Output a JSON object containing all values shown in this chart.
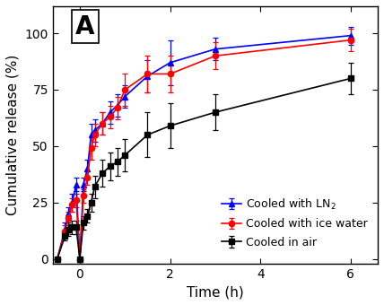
{
  "ln2_x": [
    -0.5,
    -0.33,
    -0.25,
    -0.17,
    -0.08,
    0.0,
    0.08,
    0.17,
    0.25,
    0.33,
    0.5,
    0.67,
    0.83,
    1.0,
    1.5,
    2.0,
    3.0,
    6.0
  ],
  "ln2_y": [
    0,
    13,
    20,
    25,
    33,
    0,
    33,
    40,
    55,
    57,
    60,
    65,
    68,
    72,
    81,
    87,
    93,
    99
  ],
  "ln2_yerr": [
    0,
    3,
    3,
    4,
    3,
    0,
    3,
    4,
    5,
    5,
    5,
    5,
    5,
    5,
    7,
    10,
    5,
    4
  ],
  "ice_x": [
    -0.5,
    -0.33,
    -0.25,
    -0.17,
    -0.08,
    0.0,
    0.08,
    0.17,
    0.25,
    0.33,
    0.5,
    0.67,
    0.83,
    1.0,
    1.5,
    2.0,
    3.0,
    6.0
  ],
  "ice_y": [
    0,
    12,
    18,
    24,
    26,
    0,
    28,
    36,
    49,
    55,
    60,
    63,
    67,
    75,
    82,
    82,
    90,
    97
  ],
  "ice_yerr": [
    0,
    3,
    3,
    3,
    3,
    0,
    3,
    3,
    5,
    5,
    5,
    5,
    5,
    7,
    8,
    8,
    6,
    5
  ],
  "air_x": [
    -0.5,
    -0.33,
    -0.25,
    -0.17,
    -0.08,
    0.0,
    0.08,
    0.17,
    0.25,
    0.33,
    0.5,
    0.67,
    0.83,
    1.0,
    1.5,
    2.0,
    3.0,
    6.0
  ],
  "air_y": [
    0,
    10,
    13,
    14,
    14,
    0,
    16,
    19,
    25,
    32,
    38,
    41,
    43,
    46,
    55,
    59,
    65,
    80
  ],
  "air_yerr": [
    0,
    2,
    3,
    3,
    3,
    0,
    3,
    3,
    4,
    5,
    6,
    6,
    6,
    7,
    10,
    10,
    8,
    7
  ],
  "xlabel": "Time (h)",
  "ylabel": "Cumulative release (%)",
  "xlim": [
    -0.6,
    6.6
  ],
  "ylim": [
    -2,
    112
  ],
  "yticks": [
    0,
    25,
    50,
    75,
    100
  ],
  "xticks": [
    0,
    2,
    4,
    6
  ],
  "label_ln2": "Cooled with LN$_2$",
  "label_ice": "Cooled with ice water",
  "label_air": "Cooled in air",
  "color_ln2": "#0000FF",
  "color_ice": "#FF0000",
  "color_air": "#000000",
  "panel_label": "A",
  "figsize": [
    4.28,
    3.4
  ],
  "dpi": 100
}
